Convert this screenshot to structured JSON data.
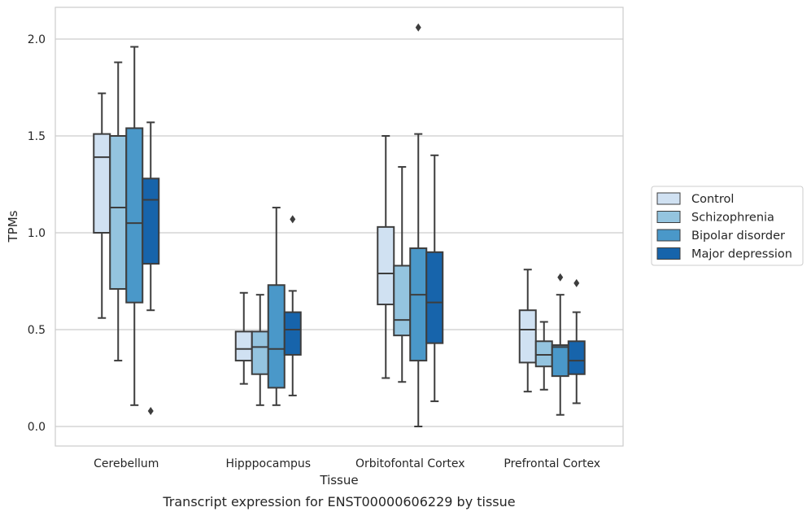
{
  "caption": "Transcript expression for ENST00000606229 by tissue",
  "chart_data": {
    "type": "box",
    "title": "",
    "xlabel": "Tissue",
    "ylabel": "TPMs",
    "ylim": [
      -0.1,
      2.17
    ],
    "yticks": [
      0.0,
      0.5,
      1.0,
      1.5,
      2.0
    ],
    "ytick_labels": [
      "0.0",
      "0.5",
      "1.0",
      "1.5",
      "2.0"
    ],
    "grid": "horizontal",
    "legend_position": "right",
    "categories": [
      "Cerebellum",
      "Hipppocampus",
      "Orbitofontal Cortex",
      "Prefrontal Cortex"
    ],
    "series": [
      {
        "name": "Control",
        "color": "#d0e1f2",
        "boxes": [
          {
            "whisker_low": 0.56,
            "q1": 1.0,
            "median": 1.39,
            "q3": 1.51,
            "whisker_high": 1.72,
            "outliers": []
          },
          {
            "whisker_low": 0.22,
            "q1": 0.34,
            "median": 0.4,
            "q3": 0.49,
            "whisker_high": 0.69,
            "outliers": []
          },
          {
            "whisker_low": 0.25,
            "q1": 0.63,
            "median": 0.79,
            "q3": 1.03,
            "whisker_high": 1.5,
            "outliers": []
          },
          {
            "whisker_low": 0.18,
            "q1": 0.33,
            "median": 0.5,
            "q3": 0.6,
            "whisker_high": 0.81,
            "outliers": []
          }
        ]
      },
      {
        "name": "Schizophrenia",
        "color": "#94c4df",
        "boxes": [
          {
            "whisker_low": 0.34,
            "q1": 0.71,
            "median": 1.13,
            "q3": 1.5,
            "whisker_high": 1.88,
            "outliers": []
          },
          {
            "whisker_low": 0.11,
            "q1": 0.27,
            "median": 0.41,
            "q3": 0.49,
            "whisker_high": 0.68,
            "outliers": []
          },
          {
            "whisker_low": 0.23,
            "q1": 0.47,
            "median": 0.55,
            "q3": 0.83,
            "whisker_high": 1.34,
            "outliers": []
          },
          {
            "whisker_low": 0.19,
            "q1": 0.31,
            "median": 0.37,
            "q3": 0.44,
            "whisker_high": 0.54,
            "outliers": []
          }
        ]
      },
      {
        "name": "Bipolar disorder",
        "color": "#4a98c9",
        "boxes": [
          {
            "whisker_low": 0.11,
            "q1": 0.64,
            "median": 1.05,
            "q3": 1.54,
            "whisker_high": 1.96,
            "outliers": []
          },
          {
            "whisker_low": 0.11,
            "q1": 0.2,
            "median": 0.4,
            "q3": 0.73,
            "whisker_high": 1.13,
            "outliers": []
          },
          {
            "whisker_low": 0.0,
            "q1": 0.34,
            "median": 0.68,
            "q3": 0.92,
            "whisker_high": 1.51,
            "outliers": [
              2.06
            ]
          },
          {
            "whisker_low": 0.06,
            "q1": 0.26,
            "median": 0.41,
            "q3": 0.42,
            "whisker_high": 0.68,
            "outliers": [
              0.77
            ]
          }
        ]
      },
      {
        "name": "Major depression",
        "color": "#1764ab",
        "boxes": [
          {
            "whisker_low": 0.6,
            "q1": 0.84,
            "median": 1.17,
            "q3": 1.28,
            "whisker_high": 1.57,
            "outliers": [
              0.08
            ]
          },
          {
            "whisker_low": 0.16,
            "q1": 0.37,
            "median": 0.5,
            "q3": 0.59,
            "whisker_high": 0.7,
            "outliers": [
              1.07
            ]
          },
          {
            "whisker_low": 0.13,
            "q1": 0.43,
            "median": 0.64,
            "q3": 0.9,
            "whisker_high": 1.4,
            "outliers": []
          },
          {
            "whisker_low": 0.12,
            "q1": 0.27,
            "median": 0.34,
            "q3": 0.44,
            "whisker_high": 0.59,
            "outliers": [
              0.74
            ]
          }
        ]
      }
    ]
  }
}
